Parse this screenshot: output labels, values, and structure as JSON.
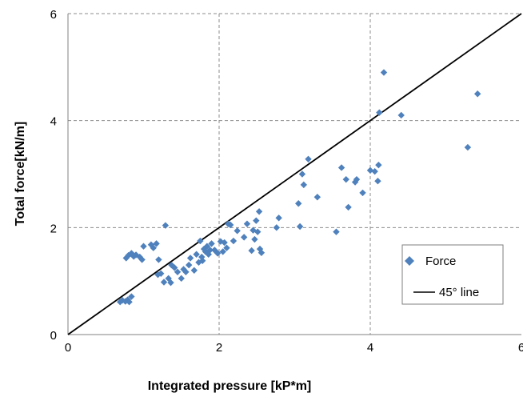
{
  "chart_data": {
    "type": "scatter",
    "xlabel": "Integrated pressure [kP*m]",
    "ylabel": "Total force[kN/m]",
    "xlim": [
      0,
      6
    ],
    "ylim": [
      0,
      6
    ],
    "xticks": [
      "0",
      "2",
      "4",
      "6"
    ],
    "yticks": [
      "0",
      "2",
      "4",
      "6"
    ],
    "grid": true,
    "legend_position": "bottom-right",
    "colors": {
      "marker": "#4f81bd",
      "line": "#000000"
    },
    "series": [
      {
        "name": "Force",
        "kind": "markers",
        "marker": "diamond",
        "points": [
          [
            0.69,
            0.61
          ],
          [
            0.72,
            0.64
          ],
          [
            0.76,
            0.62
          ],
          [
            0.79,
            0.65
          ],
          [
            0.81,
            0.61
          ],
          [
            0.84,
            0.71
          ],
          [
            0.77,
            1.43
          ],
          [
            0.8,
            1.48
          ],
          [
            0.84,
            1.52
          ],
          [
            0.87,
            1.46
          ],
          [
            0.9,
            1.49
          ],
          [
            0.95,
            1.45
          ],
          [
            0.98,
            1.4
          ],
          [
            1.0,
            1.65
          ],
          [
            1.1,
            1.68
          ],
          [
            1.13,
            1.62
          ],
          [
            1.17,
            1.7
          ],
          [
            1.2,
            1.4
          ],
          [
            1.19,
            1.12
          ],
          [
            1.23,
            1.14
          ],
          [
            1.27,
            0.98
          ],
          [
            1.29,
            2.04
          ],
          [
            1.33,
            1.05
          ],
          [
            1.36,
            0.97
          ],
          [
            1.37,
            1.3
          ],
          [
            1.41,
            1.25
          ],
          [
            1.45,
            1.17
          ],
          [
            1.5,
            1.05
          ],
          [
            1.53,
            1.22
          ],
          [
            1.56,
            1.17
          ],
          [
            1.6,
            1.3
          ],
          [
            1.62,
            1.43
          ],
          [
            1.67,
            1.2
          ],
          [
            1.7,
            1.5
          ],
          [
            1.73,
            1.35
          ],
          [
            1.75,
            1.75
          ],
          [
            1.77,
            1.45
          ],
          [
            1.78,
            1.38
          ],
          [
            1.8,
            1.6
          ],
          [
            1.82,
            1.55
          ],
          [
            1.84,
            1.65
          ],
          [
            1.86,
            1.5
          ],
          [
            1.88,
            1.58
          ],
          [
            1.9,
            1.7
          ],
          [
            1.94,
            1.58
          ],
          [
            1.98,
            1.52
          ],
          [
            2.02,
            1.74
          ],
          [
            2.05,
            1.55
          ],
          [
            2.07,
            1.72
          ],
          [
            2.1,
            1.62
          ],
          [
            2.12,
            2.07
          ],
          [
            2.15,
            2.05
          ],
          [
            2.19,
            1.75
          ],
          [
            2.24,
            1.94
          ],
          [
            2.33,
            1.82
          ],
          [
            2.37,
            2.07
          ],
          [
            2.43,
            1.57
          ],
          [
            2.45,
            1.95
          ],
          [
            2.47,
            1.78
          ],
          [
            2.49,
            2.13
          ],
          [
            2.51,
            1.92
          ],
          [
            2.53,
            2.3
          ],
          [
            2.54,
            1.6
          ],
          [
            2.56,
            1.53
          ],
          [
            2.76,
            2.0
          ],
          [
            2.79,
            2.18
          ],
          [
            3.05,
            2.45
          ],
          [
            3.07,
            2.02
          ],
          [
            3.1,
            3.0
          ],
          [
            3.12,
            2.8
          ],
          [
            3.18,
            3.28
          ],
          [
            3.3,
            2.57
          ],
          [
            3.55,
            1.92
          ],
          [
            3.62,
            3.12
          ],
          [
            3.68,
            2.9
          ],
          [
            3.71,
            2.38
          ],
          [
            3.8,
            2.85
          ],
          [
            3.82,
            2.9
          ],
          [
            3.9,
            2.65
          ],
          [
            4.0,
            3.07
          ],
          [
            4.06,
            3.05
          ],
          [
            4.1,
            2.87
          ],
          [
            4.11,
            3.17
          ],
          [
            4.12,
            4.15
          ],
          [
            4.18,
            4.9
          ],
          [
            4.41,
            4.1
          ],
          [
            5.29,
            3.5
          ],
          [
            5.42,
            4.5
          ]
        ]
      },
      {
        "name": "45° line",
        "kind": "line",
        "points": [
          [
            0,
            0
          ],
          [
            6,
            6
          ]
        ]
      }
    ]
  }
}
